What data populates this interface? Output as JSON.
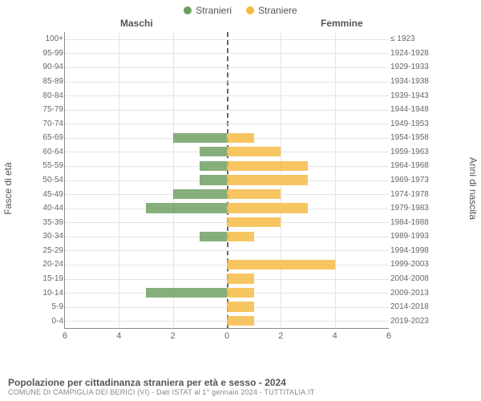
{
  "chart": {
    "type": "pyramid-bar",
    "legend": {
      "male": {
        "label": "Stranieri",
        "color": "#6b9e5f"
      },
      "female": {
        "label": "Straniere",
        "color": "#f5b940"
      }
    },
    "headers": {
      "male": "Maschi",
      "female": "Femmine"
    },
    "yaxis_left_label": "Fasce di età",
    "yaxis_right_label": "Anni di nascita",
    "xlim": [
      -6,
      6
    ],
    "xtick_step": 2,
    "xticks": [
      "6",
      "4",
      "2",
      "0",
      "2",
      "4",
      "6"
    ],
    "background_color": "#ffffff",
    "grid_color": "#e4e4e4",
    "axis_color": "#888888",
    "zero_line_color": "#666666",
    "label_color": "#666666",
    "label_fontsize": 10,
    "tick_fontsize": 11,
    "male_color": "#6b9e5f",
    "female_color": "#f5b940",
    "bar_opacity": 0.82,
    "rows": [
      {
        "age": "100+",
        "birth": "≤ 1923",
        "m": 0,
        "f": 0
      },
      {
        "age": "95-99",
        "birth": "1924-1928",
        "m": 0,
        "f": 0
      },
      {
        "age": "90-94",
        "birth": "1929-1933",
        "m": 0,
        "f": 0
      },
      {
        "age": "85-89",
        "birth": "1934-1938",
        "m": 0,
        "f": 0
      },
      {
        "age": "80-84",
        "birth": "1939-1943",
        "m": 0,
        "f": 0
      },
      {
        "age": "75-79",
        "birth": "1944-1948",
        "m": 0,
        "f": 0
      },
      {
        "age": "70-74",
        "birth": "1949-1953",
        "m": 0,
        "f": 0
      },
      {
        "age": "65-69",
        "birth": "1954-1958",
        "m": 2,
        "f": 1
      },
      {
        "age": "60-64",
        "birth": "1959-1963",
        "m": 1,
        "f": 2
      },
      {
        "age": "55-59",
        "birth": "1964-1968",
        "m": 1,
        "f": 3
      },
      {
        "age": "50-54",
        "birth": "1969-1973",
        "m": 1,
        "f": 3
      },
      {
        "age": "45-49",
        "birth": "1974-1978",
        "m": 2,
        "f": 2
      },
      {
        "age": "40-44",
        "birth": "1979-1983",
        "m": 3,
        "f": 3
      },
      {
        "age": "35-39",
        "birth": "1984-1988",
        "m": 0,
        "f": 2
      },
      {
        "age": "30-34",
        "birth": "1989-1993",
        "m": 1,
        "f": 1
      },
      {
        "age": "25-29",
        "birth": "1994-1998",
        "m": 0,
        "f": 0
      },
      {
        "age": "20-24",
        "birth": "1999-2003",
        "m": 0,
        "f": 4
      },
      {
        "age": "15-19",
        "birth": "2004-2008",
        "m": 0,
        "f": 1
      },
      {
        "age": "10-14",
        "birth": "2009-2013",
        "m": 3,
        "f": 1
      },
      {
        "age": "5-9",
        "birth": "2014-2018",
        "m": 0,
        "f": 1
      },
      {
        "age": "0-4",
        "birth": "2019-2023",
        "m": 0,
        "f": 1
      }
    ]
  },
  "footer": {
    "title": "Popolazione per cittadinanza straniera per età e sesso - 2024",
    "subtitle": "COMUNE DI CAMPIGLIA DEI BERICI (VI) - Dati ISTAT al 1° gennaio 2024 - TUTTITALIA.IT"
  }
}
